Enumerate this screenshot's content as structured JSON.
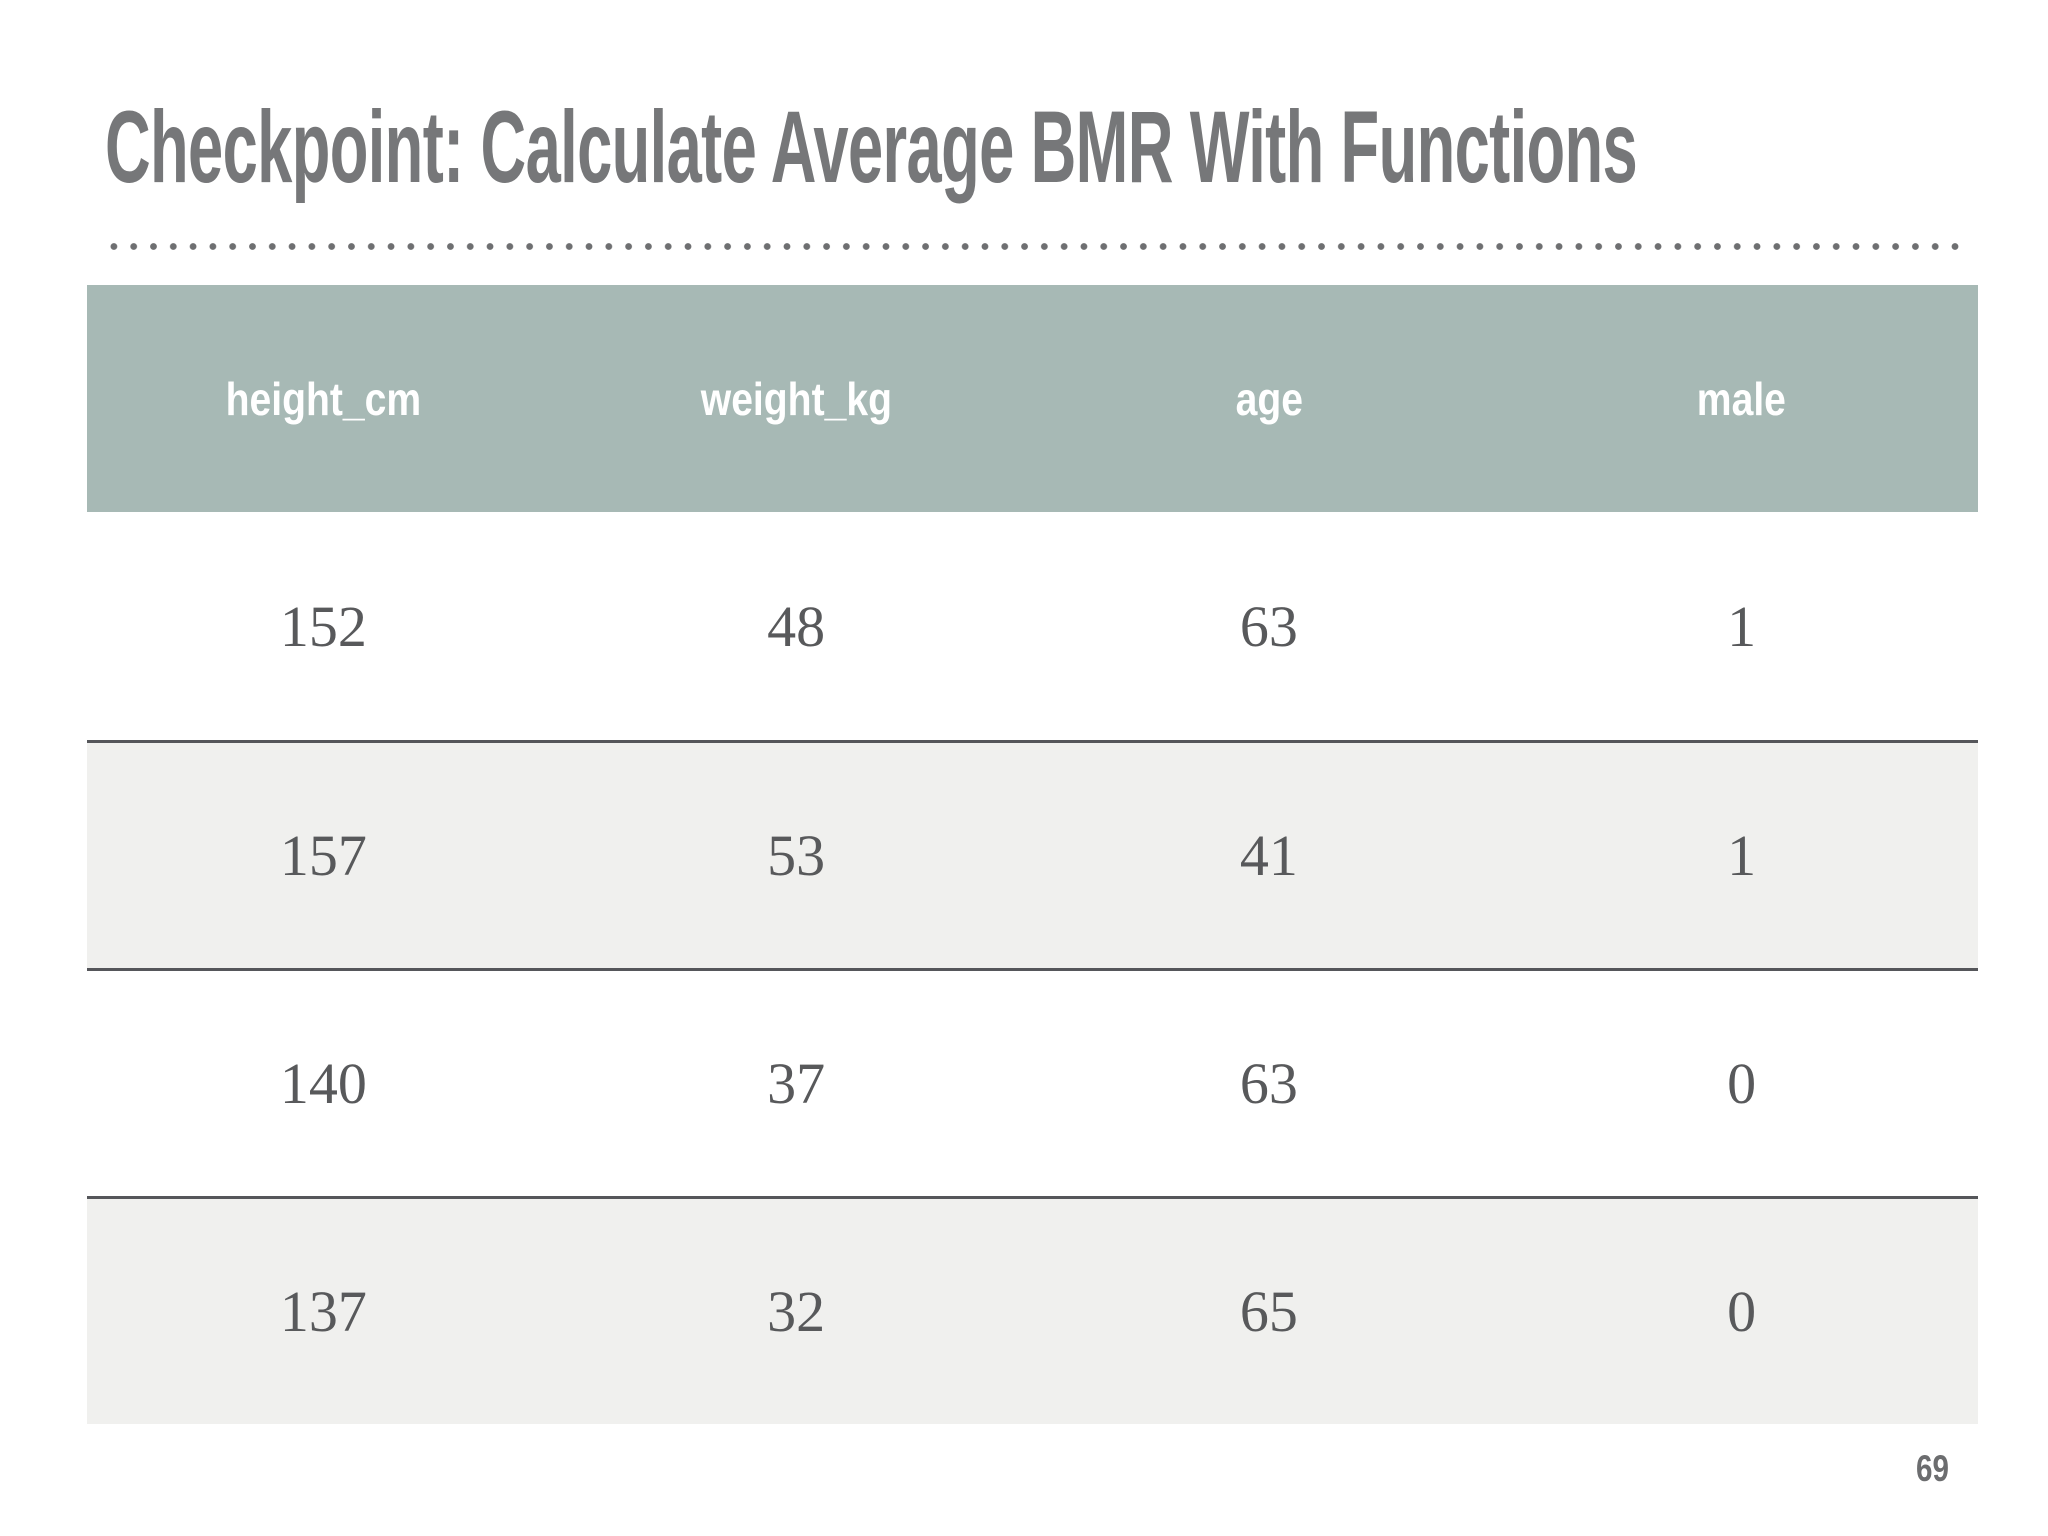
{
  "slide": {
    "title": "Checkpoint: Calculate Average BMR With Functions",
    "page_number": "69"
  },
  "table": {
    "columns": [
      "height_cm",
      "weight_kg",
      "age",
      "male"
    ],
    "rows": [
      [
        "152",
        "48",
        "63",
        "1"
      ],
      [
        "157",
        "53",
        "41",
        "1"
      ],
      [
        "140",
        "37",
        "63",
        "0"
      ],
      [
        "137",
        "32",
        "65",
        "0"
      ]
    ]
  },
  "colors": {
    "title_text": "#767779",
    "dotted_rule": "#6e6f71",
    "header_bg": "#a7b9b5",
    "header_text": "#ffffff",
    "row_bg": "#ffffff",
    "row_alt_bg": "#f0f0ee",
    "row_divider": "#55565a",
    "body_text": "#58595b",
    "page_number_text": "#6c6d6f"
  }
}
